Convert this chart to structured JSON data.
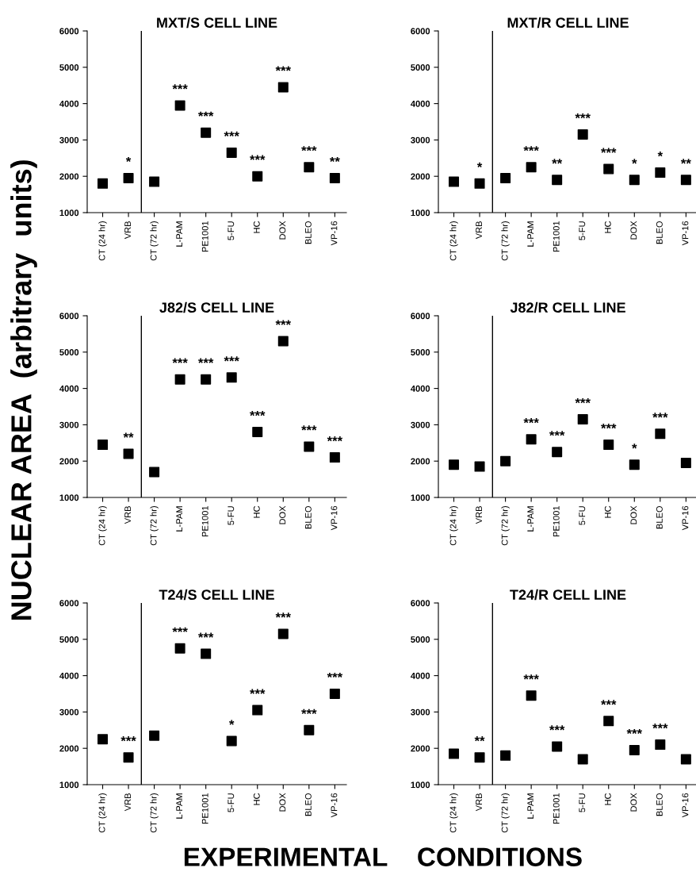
{
  "chart_data": [
    {
      "type": "scatter",
      "title": "MXT/S CELL LINE",
      "ylabel": "NUCLEAR AREA  (arbitrary  units)",
      "xlabel": "EXPERIMENTAL    CONDITIONS",
      "marker": "square",
      "color": "#000000",
      "categories": [
        "CT (24 hr)",
        "VRB",
        "CT (72 hr)",
        "L-PAM",
        "PE1001",
        "5-FU",
        "HC",
        "DOX",
        "BLEO",
        "VP-16"
      ],
      "values": [
        1800,
        1950,
        1850,
        3950,
        3200,
        2650,
        2000,
        4450,
        2250,
        1950
      ],
      "ylim": [
        1000,
        6000
      ],
      "yticks": [
        1000,
        2000,
        3000,
        4000,
        5000,
        6000
      ],
      "annotations": [
        {
          "text": "*",
          "x": "VRB",
          "y": 1950
        },
        {
          "text": "***",
          "x": "L-PAM",
          "y": 3950
        },
        {
          "text": "***",
          "x": "PE1001",
          "y": 3200
        },
        {
          "text": "***",
          "x": "5-FU",
          "y": 2650
        },
        {
          "text": "***",
          "x": "HC",
          "y": 2000
        },
        {
          "text": "***",
          "x": "DOX",
          "y": 4450
        },
        {
          "text": "***",
          "x": "BLEO",
          "y": 2250
        },
        {
          "text": "**",
          "x": "VP-16",
          "y": 1950
        }
      ]
    },
    {
      "type": "scatter",
      "title": "MXT/R CELL LINE",
      "marker": "square",
      "color": "#000000",
      "categories": [
        "CT (24 hr)",
        "VRB",
        "CT (72 hr)",
        "L-PAM",
        "PE1001",
        "5-FU",
        "HC",
        "DOX",
        "BLEO",
        "VP-16"
      ],
      "values": [
        1850,
        1800,
        1950,
        2250,
        1900,
        3150,
        2200,
        1900,
        2100,
        1900
      ],
      "ylim": [
        1000,
        6000
      ],
      "yticks": [
        1000,
        2000,
        3000,
        4000,
        5000,
        6000
      ],
      "annotations": [
        {
          "text": "*",
          "x": "VRB",
          "y": 1800
        },
        {
          "text": "***",
          "x": "L-PAM",
          "y": 2250
        },
        {
          "text": "**",
          "x": "PE1001",
          "y": 1900
        },
        {
          "text": "***",
          "x": "5-FU",
          "y": 3150
        },
        {
          "text": "***",
          "x": "HC",
          "y": 2200
        },
        {
          "text": "*",
          "x": "DOX",
          "y": 1900
        },
        {
          "text": "*",
          "x": "BLEO",
          "y": 2100
        },
        {
          "text": "**",
          "x": "VP-16",
          "y": 1900
        }
      ]
    },
    {
      "type": "scatter",
      "title": "J82/S CELL LINE",
      "marker": "square",
      "color": "#000000",
      "categories": [
        "CT (24 hr)",
        "VRB",
        "CT (72 hr)",
        "L-PAM",
        "PE1001",
        "5-FU",
        "HC",
        "DOX",
        "BLEO",
        "VP-16"
      ],
      "values": [
        2450,
        2200,
        1700,
        4250,
        4250,
        4300,
        2800,
        5300,
        2400,
        2100
      ],
      "ylim": [
        1000,
        6000
      ],
      "yticks": [
        1000,
        2000,
        3000,
        4000,
        5000,
        6000
      ],
      "annotations": [
        {
          "text": "**",
          "x": "VRB",
          "y": 2200
        },
        {
          "text": "***",
          "x": "L-PAM",
          "y": 4250
        },
        {
          "text": "***",
          "x": "PE1001",
          "y": 4250
        },
        {
          "text": "***",
          "x": "5-FU",
          "y": 4300
        },
        {
          "text": "***",
          "x": "HC",
          "y": 2800
        },
        {
          "text": "***",
          "x": "DOX",
          "y": 5300
        },
        {
          "text": "***",
          "x": "BLEO",
          "y": 2400
        },
        {
          "text": "***",
          "x": "VP-16",
          "y": 2100
        }
      ]
    },
    {
      "type": "scatter",
      "title": "J82/R CELL LINE",
      "marker": "square",
      "color": "#000000",
      "categories": [
        "CT (24 hr)",
        "VRB",
        "CT (72 hr)",
        "L-PAM",
        "PE1001",
        "5-FU",
        "HC",
        "DOX",
        "BLEO",
        "VP-16"
      ],
      "values": [
        1900,
        1850,
        2000,
        2600,
        2250,
        3150,
        2450,
        1900,
        2750,
        1950
      ],
      "ylim": [
        1000,
        6000
      ],
      "yticks": [
        1000,
        2000,
        3000,
        4000,
        5000,
        6000
      ],
      "annotations": [
        {
          "text": "***",
          "x": "L-PAM",
          "y": 2600
        },
        {
          "text": "***",
          "x": "PE1001",
          "y": 2250
        },
        {
          "text": "***",
          "x": "5-FU",
          "y": 3150
        },
        {
          "text": "***",
          "x": "HC",
          "y": 2450
        },
        {
          "text": "*",
          "x": "DOX",
          "y": 1900
        },
        {
          "text": "***",
          "x": "BLEO",
          "y": 2750
        }
      ]
    },
    {
      "type": "scatter",
      "title": "T24/S CELL LINE",
      "marker": "square",
      "color": "#000000",
      "categories": [
        "CT (24 hr)",
        "VRB",
        "CT (72 hr)",
        "L-PAM",
        "PE1001",
        "5-FU",
        "HC",
        "DOX",
        "BLEO",
        "VP-16"
      ],
      "values": [
        2250,
        1750,
        2350,
        4750,
        4600,
        2200,
        3050,
        5150,
        2500,
        3500
      ],
      "ylim": [
        1000,
        6000
      ],
      "yticks": [
        1000,
        2000,
        3000,
        4000,
        5000,
        6000
      ],
      "annotations": [
        {
          "text": "***",
          "x": "VRB",
          "y": 1750
        },
        {
          "text": "***",
          "x": "L-PAM",
          "y": 4750
        },
        {
          "text": "***",
          "x": "PE1001",
          "y": 4600
        },
        {
          "text": "*",
          "x": "5-FU",
          "y": 2200
        },
        {
          "text": "***",
          "x": "HC",
          "y": 3050
        },
        {
          "text": "***",
          "x": "DOX",
          "y": 5150
        },
        {
          "text": "***",
          "x": "BLEO",
          "y": 2500
        },
        {
          "text": "***",
          "x": "VP-16",
          "y": 3500
        }
      ]
    },
    {
      "type": "scatter",
      "title": "T24/R CELL LINE",
      "marker": "square",
      "color": "#000000",
      "categories": [
        "CT (24 hr)",
        "VRB",
        "CT (72 hr)",
        "L-PAM",
        "PE1001",
        "5-FU",
        "HC",
        "DOX",
        "BLEO",
        "VP-16"
      ],
      "values": [
        1850,
        1750,
        1800,
        3450,
        2050,
        1700,
        2750,
        1950,
        2100,
        1700
      ],
      "ylim": [
        1000,
        6000
      ],
      "yticks": [
        1000,
        2000,
        3000,
        4000,
        5000,
        6000
      ],
      "annotations": [
        {
          "text": "**",
          "x": "VRB",
          "y": 1750
        },
        {
          "text": "***",
          "x": "L-PAM",
          "y": 3450
        },
        {
          "text": "***",
          "x": "PE1001",
          "y": 2050
        },
        {
          "text": "***",
          "x": "HC",
          "y": 2750
        },
        {
          "text": "***",
          "x": "DOX",
          "y": 1950
        },
        {
          "text": "***",
          "x": "BLEO",
          "y": 2100
        }
      ]
    }
  ]
}
